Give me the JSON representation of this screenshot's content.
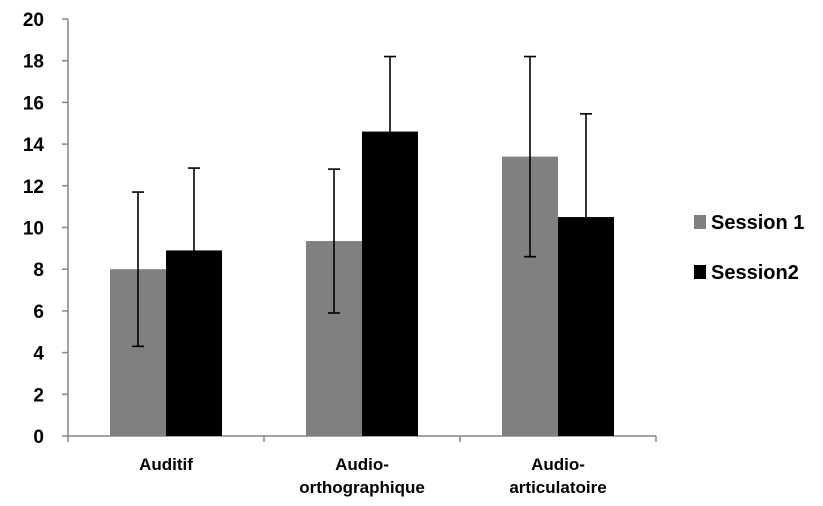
{
  "chart_data": {
    "type": "bar",
    "title": "",
    "xlabel": "",
    "ylabel": "",
    "ylim": [
      0,
      20
    ],
    "yticks": [
      0,
      2,
      4,
      6,
      8,
      10,
      12,
      14,
      16,
      18,
      20
    ],
    "grid": false,
    "legend_position": "right",
    "categories": [
      [
        "Auditif"
      ],
      [
        "Audio-",
        "orthographique"
      ],
      [
        "Audio-",
        "articulatoire"
      ]
    ],
    "series": [
      {
        "name": "Session 1",
        "color": "#808080",
        "values": [
          8.0,
          9.35,
          13.4
        ],
        "errors": [
          3.7,
          3.45,
          4.8
        ]
      },
      {
        "name": "Session2",
        "color": "#000000",
        "values": [
          8.9,
          14.6,
          10.5
        ],
        "errors": [
          3.95,
          3.6,
          4.95
        ]
      }
    ]
  }
}
